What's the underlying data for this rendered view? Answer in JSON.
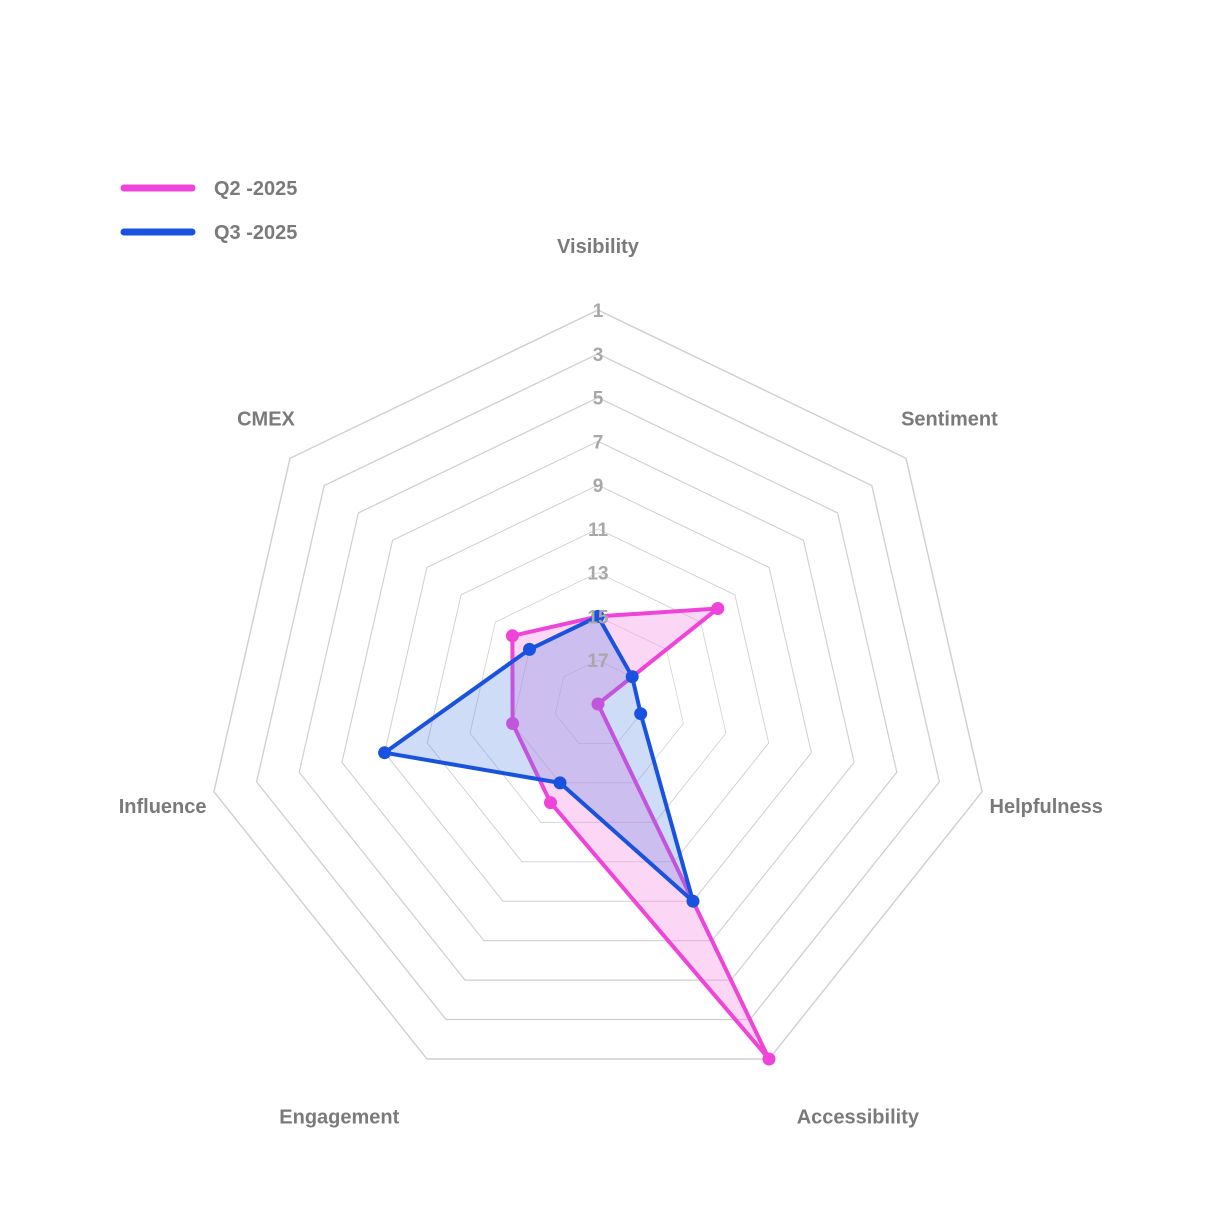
{
  "chart_data": {
    "type": "radar",
    "axes": [
      "Visibility",
      "Sentiment",
      "Helpfulness",
      "Accessibility",
      "Engagement",
      "Influence",
      "CMEX"
    ],
    "scale": {
      "min": 1,
      "max": 19,
      "reversed": true,
      "ticks": [
        1,
        3,
        5,
        7,
        9,
        11,
        13,
        15,
        17
      ]
    },
    "legend_position": "top-left",
    "series": [
      {
        "name": "Q2 -2025",
        "color": "#ee44d8",
        "fill": "rgba(246,150,230,0.38)",
        "values": [
          15,
          12,
          19,
          1,
          14,
          15,
          14
        ]
      },
      {
        "name": "Q3 -2025",
        "color": "#1a52e0",
        "fill": "rgba(80,130,225,0.28)",
        "values": [
          15,
          17,
          17,
          9,
          15,
          9,
          15
        ]
      }
    ]
  }
}
